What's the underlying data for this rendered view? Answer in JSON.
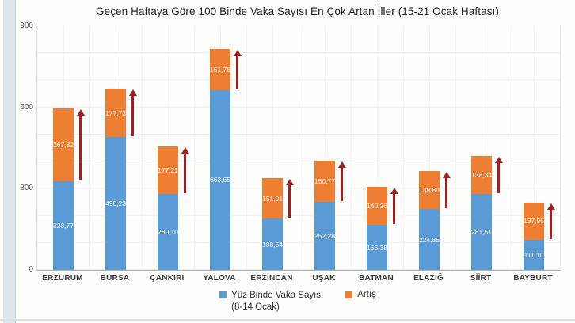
{
  "chart": {
    "title": "Geçen Haftaya Göre 100 Binde Vaka Sayısı En Çok Artan İller (15-21 Ocak Haftası)"
  },
  "legend": {
    "series1_label": "Yüz Binde Vaka Sayısı",
    "series1_subline": "(8-14 Ocak)",
    "series2_label": "Artış"
  },
  "colors": {
    "vaka_blue": "#5B9BD5",
    "artis_orange": "#ED7D31",
    "arrow_red": "#9C2121"
  },
  "chart_data": {
    "type": "bar",
    "stacked": true,
    "title": "Geçen Haftaya Göre 100 Binde Vaka Sayısı En Çok Artan İller (15-21 Ocak Haftası)",
    "categories": [
      "ERZURUM",
      "BURSA",
      "ÇANKIRI",
      "YALOVA",
      "ERZİNCAN",
      "UŞAK",
      "BATMAN",
      "ELAZIĞ",
      "SİİRT",
      "BAYBURT"
    ],
    "series": [
      {
        "name": "Yüz Binde Vaka Sayısı (8-14 Ocak)",
        "color": "#5B9BD5",
        "values": [
          328.77,
          490.23,
          280.1,
          663.65,
          188.54,
          252.28,
          166.38,
          224.85,
          281.51,
          111.1
        ]
      },
      {
        "name": "Artış",
        "color": "#ED7D31",
        "values": [
          267.32,
          177.73,
          177.21,
          151.78,
          151.01,
          150.77,
          140.26,
          139.8,
          138.34,
          137.95
        ]
      }
    ],
    "value_labels": {
      "format": "comma-decimal",
      "decimals": 2
    },
    "annotations": "dark-red vertical increase arrow beside each bar spanning the Artış segment",
    "xlabel": "",
    "ylabel": "",
    "ylim": [
      0,
      900
    ],
    "yticks": [
      0,
      300,
      600,
      900
    ],
    "grid": true,
    "legend_position": "bottom"
  }
}
